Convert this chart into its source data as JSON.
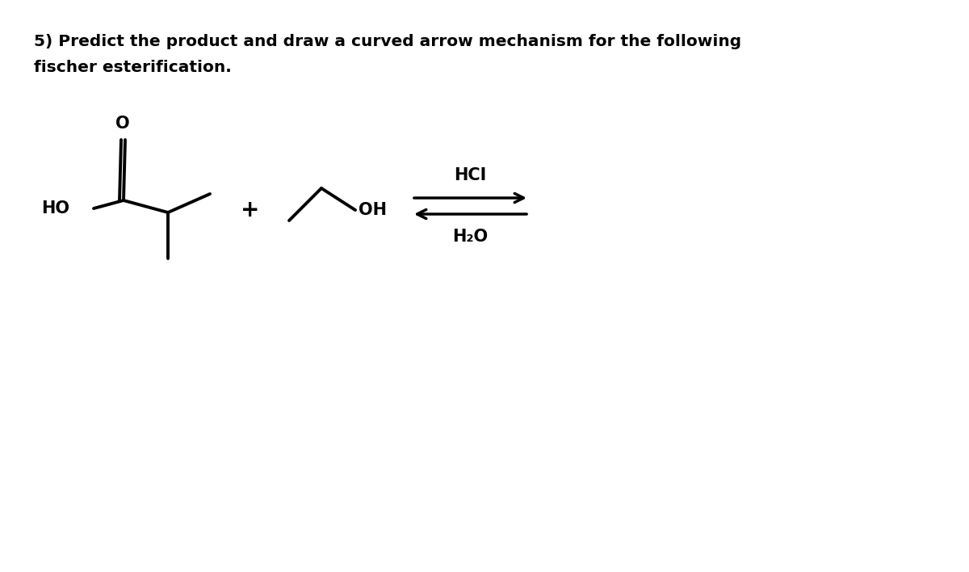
{
  "title_line1": "5) Predict the product and draw a curved arrow mechanism for the following",
  "title_line2": "fischer esterification.",
  "title_fontsize": 14.5,
  "bg_color": "#ffffff",
  "line_color": "#000000",
  "text_color": "#000000",
  "hcl_label": "HCI",
  "h2o_label": "H₂O",
  "plus_sign": "+",
  "ho_label": "HO",
  "oh_label": "OH",
  "o_label": "O",
  "fig_width": 12.0,
  "fig_height": 7.08,
  "dpi": 100
}
